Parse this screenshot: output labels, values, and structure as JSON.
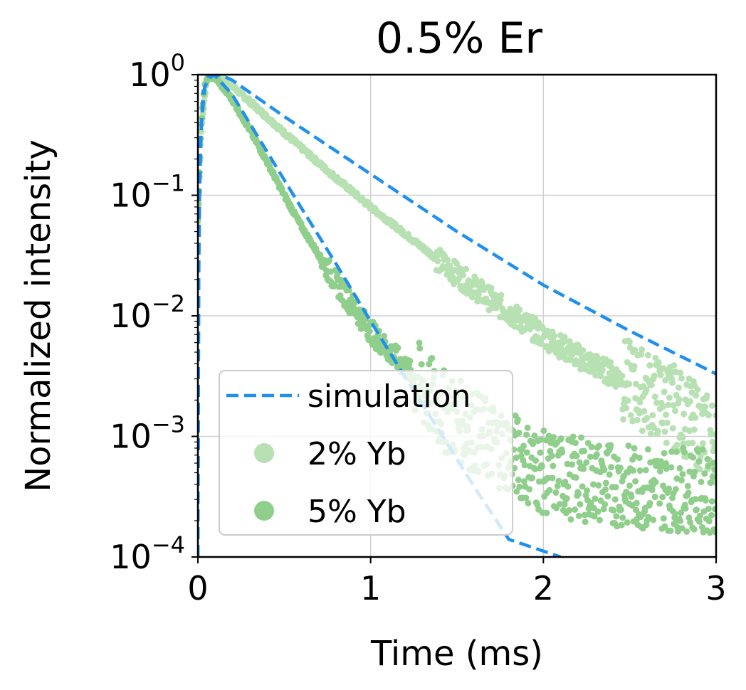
{
  "chart_data": {
    "type": "scatter",
    "title": "0.5% Er",
    "xlabel": "Time (ms)",
    "ylabel": "Normalized intensity",
    "xlim": [
      0,
      3
    ],
    "ylim": [
      0.0001,
      1
    ],
    "yscale": "log",
    "grid": true,
    "x_ticks": [
      {
        "value": 0,
        "label": "0"
      },
      {
        "value": 1,
        "label": "1"
      },
      {
        "value": 2,
        "label": "2"
      },
      {
        "value": 3,
        "label": "3"
      }
    ],
    "y_ticks": [
      {
        "value": 1,
        "base": "10",
        "exp": "0"
      },
      {
        "value": 0.1,
        "base": "10",
        "exp": "−1"
      },
      {
        "value": 0.01,
        "base": "10",
        "exp": "−2"
      },
      {
        "value": 0.001,
        "base": "10",
        "exp": "−3"
      },
      {
        "value": 0.0001,
        "base": "10",
        "exp": "−4"
      }
    ],
    "legend_position": "lower-left",
    "series": [
      {
        "name": "2% Yb",
        "kind": "scatter",
        "color": "#b7e1b2",
        "points": [
          [
            0,
            0.06
          ],
          [
            0.02,
            0.35
          ],
          [
            0.05,
            0.9
          ],
          [
            0.08,
            1.0
          ],
          [
            0.15,
            0.93
          ],
          [
            0.3,
            0.6
          ],
          [
            0.5,
            0.33
          ],
          [
            0.75,
            0.16
          ],
          [
            1.0,
            0.08
          ],
          [
            1.25,
            0.042
          ],
          [
            1.5,
            0.022
          ],
          [
            1.75,
            0.012
          ],
          [
            2.0,
            0.0068
          ],
          [
            2.25,
            0.0042
          ],
          [
            2.5,
            0.0028
          ],
          [
            2.75,
            0.0018
          ],
          [
            3.0,
            0.0009
          ]
        ]
      },
      {
        "name": "5% Yb",
        "kind": "scatter",
        "color": "#8fce8b",
        "points": [
          [
            0,
            0.06
          ],
          [
            0.02,
            0.4
          ],
          [
            0.04,
            0.85
          ],
          [
            0.07,
            0.98
          ],
          [
            0.1,
            0.95
          ],
          [
            0.2,
            0.62
          ],
          [
            0.3,
            0.35
          ],
          [
            0.4,
            0.19
          ],
          [
            0.5,
            0.1
          ],
          [
            0.6,
            0.055
          ],
          [
            0.7,
            0.032
          ],
          [
            0.8,
            0.019
          ],
          [
            0.9,
            0.012
          ],
          [
            1.0,
            0.0075
          ],
          [
            1.1,
            0.0052
          ],
          [
            1.2,
            0.0038
          ],
          [
            1.3,
            0.0025
          ],
          [
            1.4,
            0.0017
          ],
          [
            1.6,
            0.0011
          ],
          [
            1.8,
            0.00075
          ],
          [
            2.0,
            0.0005
          ],
          [
            2.5,
            0.00038
          ],
          [
            3.0,
            0.00035
          ]
        ]
      },
      {
        "name": "simulation",
        "kind": "dashed-line",
        "color": "#1f8ff0",
        "curves": [
          [
            [
              0,
              0.0001
            ],
            [
              0.005,
              0.02
            ],
            [
              0.01,
              0.1
            ],
            [
              0.02,
              0.4
            ],
            [
              0.04,
              0.8
            ],
            [
              0.08,
              0.98
            ],
            [
              0.13,
              1.0
            ],
            [
              0.2,
              0.9
            ],
            [
              0.5,
              0.45
            ],
            [
              1.0,
              0.15
            ],
            [
              1.5,
              0.05
            ],
            [
              2.0,
              0.018
            ],
            [
              2.5,
              0.0075
            ],
            [
              3.0,
              0.0033
            ]
          ],
          [
            [
              0,
              0.0001
            ],
            [
              0.005,
              0.03
            ],
            [
              0.01,
              0.2
            ],
            [
              0.03,
              0.7
            ],
            [
              0.06,
              0.98
            ],
            [
              0.1,
              0.98
            ],
            [
              0.2,
              0.68
            ],
            [
              0.4,
              0.23
            ],
            [
              0.6,
              0.078
            ],
            [
              0.8,
              0.027
            ],
            [
              1.0,
              0.009
            ],
            [
              1.2,
              0.0031
            ],
            [
              1.4,
              0.0011
            ],
            [
              1.6,
              0.00038
            ],
            [
              1.8,
              0.00014
            ],
            [
              2.1,
              0.0001
            ]
          ]
        ]
      }
    ],
    "legend": [
      {
        "label": "simulation",
        "kind": "dashed-line",
        "color": "#1f8ff0"
      },
      {
        "label": "2% Yb",
        "kind": "marker",
        "color": "#b7e1b2"
      },
      {
        "label": "5% Yb",
        "kind": "marker",
        "color": "#8fce8b"
      }
    ]
  }
}
